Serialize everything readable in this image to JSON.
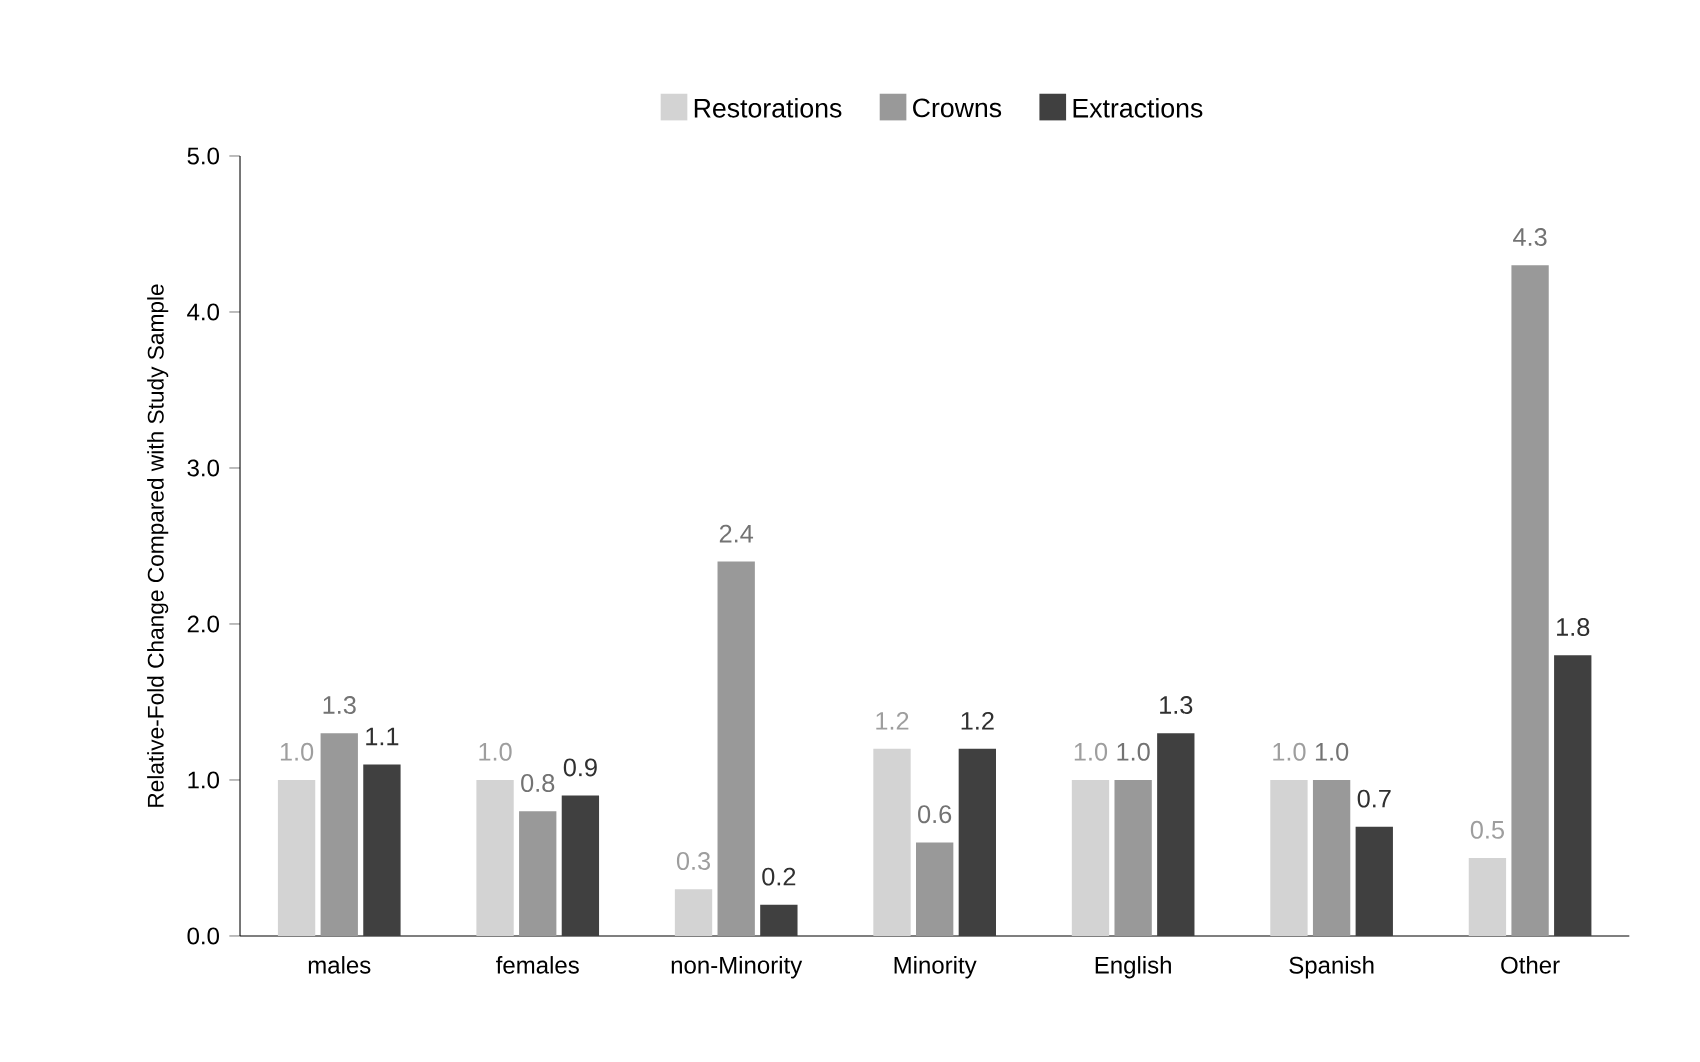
{
  "chart_data": {
    "type": "bar",
    "ylabel": "Relative-Fold Change Compared with Study Sample",
    "categories": [
      "males",
      "females",
      "non-Minority",
      "Minority",
      "English",
      "Spanish",
      "Other"
    ],
    "series": [
      {
        "name": "Restorations",
        "color": "#d3d3d3",
        "values": [
          1.0,
          1.0,
          0.3,
          1.2,
          1.0,
          1.0,
          0.5
        ],
        "value_labels": [
          "1.0",
          "1.0",
          "0.3",
          "1.2",
          "1.0",
          "1.0",
          "0.5"
        ]
      },
      {
        "name": "Crowns",
        "color": "#999999",
        "values": [
          1.3,
          0.8,
          2.4,
          0.6,
          1.0,
          1.0,
          4.3
        ],
        "value_labels": [
          "1.3",
          "0.8",
          "2.4",
          "0.6",
          "1.0",
          "1.0",
          "4.3"
        ]
      },
      {
        "name": "Extractions",
        "color": "#404040",
        "values": [
          1.1,
          0.9,
          0.2,
          1.2,
          1.3,
          0.7,
          1.8
        ],
        "value_labels": [
          "1.1",
          "0.9",
          "0.2",
          "1.2",
          "1.3",
          "0.7",
          "1.8"
        ]
      }
    ],
    "ylim": [
      0,
      5
    ],
    "yticks": [
      {
        "value": 0,
        "label": "0.0"
      },
      {
        "value": 1,
        "label": "1.0"
      },
      {
        "value": 2,
        "label": "2.0"
      },
      {
        "value": 3,
        "label": "3.0"
      },
      {
        "value": 4,
        "label": "4.0"
      },
      {
        "value": 5,
        "label": "5.0"
      }
    ],
    "legend": "top",
    "grid": false
  }
}
